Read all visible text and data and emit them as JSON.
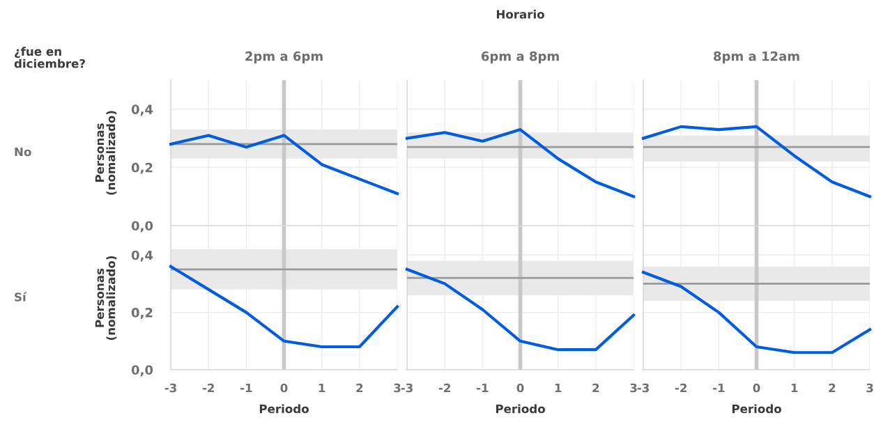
{
  "chart_data": [
    {
      "type": "line",
      "title": "2pm a 6pm",
      "ylabel": "Personas\n(nomalizado)",
      "annotations": [
        "Horario",
        "¿fue en\ndiciembre?",
        "No"
      ],
      "x": [
        -3,
        -2,
        -1,
        0,
        1,
        2,
        3
      ],
      "xlim": [
        -3,
        3
      ],
      "xticks": [
        -3,
        -2,
        -1,
        0,
        1,
        2,
        3
      ],
      "ylim": [
        0,
        0.5
      ],
      "yticks": [
        {
          "value": 0,
          "label": "0,0"
        },
        {
          "value": 0.2,
          "label": "0,2"
        },
        {
          "value": 0.4,
          "label": "0,4"
        }
      ],
      "tick_labels": "y",
      "grid": true,
      "series": [
        {
          "color": "#005ce0",
          "values": [
            0.28,
            0.31,
            0.27,
            0.31,
            0.21,
            0.16,
            0.11
          ]
        }
      ],
      "ref_lines": [
        {
          "axis": "x",
          "value": 0,
          "color": "#c8c8c8"
        },
        {
          "axis": "y",
          "value": 0.28,
          "color": "#9a9a9a"
        }
      ],
      "bands": [
        {
          "axis": "y",
          "from": 0.23,
          "to": 0.33,
          "color": "#e9e9e9"
        }
      ]
    },
    {
      "type": "line",
      "title": "6pm a 8pm",
      "x": [
        -3,
        -2,
        -1,
        0,
        1,
        2,
        3
      ],
      "xlim": [
        -3,
        3
      ],
      "xticks": [
        -3,
        -2,
        -1,
        0,
        1,
        2,
        3
      ],
      "ylim": [
        0,
        0.5
      ],
      "yticks": [
        0,
        0.2,
        0.4
      ],
      "tick_labels": false,
      "grid": true,
      "series": [
        {
          "color": "#005ce0",
          "values": [
            0.3,
            0.32,
            0.29,
            0.33,
            0.23,
            0.15,
            0.1
          ]
        }
      ],
      "ref_lines": [
        {
          "axis": "x",
          "value": 0,
          "color": "#c8c8c8"
        },
        {
          "axis": "y",
          "value": 0.27,
          "color": "#9a9a9a"
        }
      ],
      "bands": [
        {
          "axis": "y",
          "from": 0.23,
          "to": 0.32,
          "color": "#e9e9e9"
        }
      ]
    },
    {
      "type": "line",
      "title": "8pm a 12am",
      "x": [
        -3,
        -2,
        -1,
        0,
        1,
        2,
        3
      ],
      "xlim": [
        -3,
        3
      ],
      "xticks": [
        -3,
        -2,
        -1,
        0,
        1,
        2,
        3
      ],
      "ylim": [
        0,
        0.5
      ],
      "yticks": [
        0,
        0.2,
        0.4
      ],
      "tick_labels": false,
      "grid": true,
      "series": [
        {
          "color": "#005ce0",
          "values": [
            0.3,
            0.34,
            0.33,
            0.34,
            0.24,
            0.15,
            0.1
          ]
        }
      ],
      "ref_lines": [
        {
          "axis": "x",
          "value": 0,
          "color": "#c8c8c8"
        },
        {
          "axis": "y",
          "value": 0.27,
          "color": "#9a9a9a"
        }
      ],
      "bands": [
        {
          "axis": "y",
          "from": 0.22,
          "to": 0.31,
          "color": "#e9e9e9"
        }
      ]
    },
    {
      "type": "line",
      "xlabel": "Periodo",
      "ylabel": "Personas\n(nomalizado)",
      "annotations": [
        "Sí"
      ],
      "x": [
        -3,
        -2,
        -1,
        0,
        1,
        2,
        3
      ],
      "xlim": [
        -3,
        3
      ],
      "xticks": [
        -3,
        -2,
        -1,
        0,
        1,
        2,
        3
      ],
      "ylim": [
        0,
        0.5
      ],
      "yticks": [
        {
          "value": 0,
          "label": "0,0"
        },
        {
          "value": 0.2,
          "label": "0,2"
        },
        {
          "value": 0.4,
          "label": "0,4"
        }
      ],
      "grid": true,
      "series": [
        {
          "color": "#005ce0",
          "values": [
            0.36,
            0.28,
            0.2,
            0.1,
            0.08,
            0.08,
            0.22
          ]
        }
      ],
      "ref_lines": [
        {
          "axis": "x",
          "value": 0,
          "color": "#c8c8c8"
        },
        {
          "axis": "y",
          "value": 0.35,
          "color": "#9a9a9a"
        }
      ],
      "bands": [
        {
          "axis": "y",
          "from": 0.28,
          "to": 0.42,
          "color": "#e9e9e9"
        }
      ]
    },
    {
      "type": "line",
      "xlabel": "Periodo",
      "x": [
        -3,
        -2,
        -1,
        0,
        1,
        2,
        3
      ],
      "xlim": [
        -3,
        3
      ],
      "xticks": [
        -3,
        -2,
        -1,
        0,
        1,
        2,
        3
      ],
      "ylim": [
        0,
        0.5
      ],
      "yticks": [
        0,
        0.2,
        0.4
      ],
      "tick_labels": "x",
      "grid": true,
      "series": [
        {
          "color": "#005ce0",
          "values": [
            0.35,
            0.3,
            0.21,
            0.1,
            0.07,
            0.07,
            0.19
          ]
        }
      ],
      "ref_lines": [
        {
          "axis": "x",
          "value": 0,
          "color": "#c8c8c8"
        },
        {
          "axis": "y",
          "value": 0.32,
          "color": "#9a9a9a"
        }
      ],
      "bands": [
        {
          "axis": "y",
          "from": 0.26,
          "to": 0.38,
          "color": "#e9e9e9"
        }
      ]
    },
    {
      "type": "line",
      "xlabel": "Periodo",
      "x": [
        -3,
        -2,
        -1,
        0,
        1,
        2,
        3
      ],
      "xlim": [
        -3,
        3
      ],
      "xticks": [
        -3,
        -2,
        -1,
        0,
        1,
        2,
        3
      ],
      "ylim": [
        0,
        0.5
      ],
      "yticks": [
        0,
        0.2,
        0.4
      ],
      "tick_labels": "x",
      "grid": true,
      "series": [
        {
          "color": "#005ce0",
          "values": [
            0.34,
            0.29,
            0.2,
            0.08,
            0.06,
            0.06,
            0.14
          ]
        }
      ],
      "ref_lines": [
        {
          "axis": "x",
          "value": 0,
          "color": "#c8c8c8"
        },
        {
          "axis": "y",
          "value": 0.3,
          "color": "#9a9a9a"
        }
      ],
      "bands": [
        {
          "axis": "y",
          "from": 0.24,
          "to": 0.36,
          "color": "#e9e9e9"
        }
      ]
    }
  ]
}
